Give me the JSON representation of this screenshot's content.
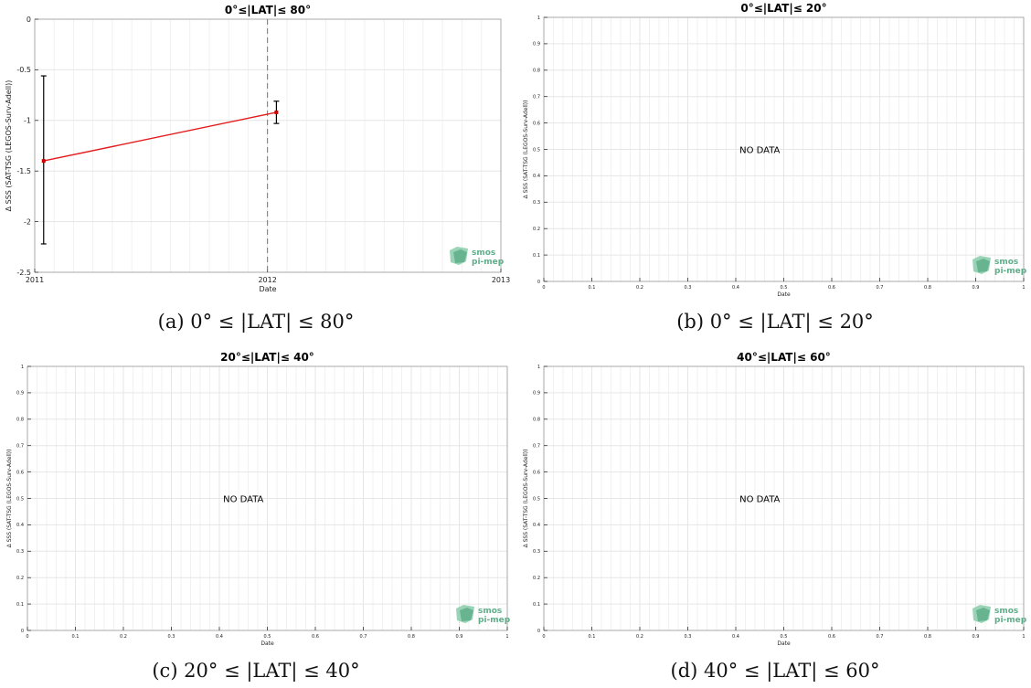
{
  "logo": {
    "line1": "smos",
    "line2": "pi-mep",
    "color": "#5fae8a",
    "icon": "smos-pi-mep-logo"
  },
  "colors": {
    "series": "#e41a1c",
    "errorbar": "#000000",
    "grid": "#e6e6e6",
    "marker": "#cc0000"
  },
  "chart_data": [
    {
      "type": "line",
      "title": "0°≤|LAT|≤ 80°",
      "xlabel": "Date",
      "ylabel": "Δ SSS (SAT-TSG (LEGOS-Surv-Adell))",
      "x_ticks": [
        "2011",
        "2012",
        "2013"
      ],
      "y_ticks": [
        "0",
        "-0.5",
        "-1",
        "-1.5",
        "-2",
        "-2.5"
      ],
      "xlim": [
        "2011-01-01",
        "2013-01-01"
      ],
      "ylim": [
        -2.5,
        0
      ],
      "grid": true,
      "vline_x": "2012-01-01",
      "series": [
        {
          "x": [
            "2011-01-15",
            "2012-01-15"
          ],
          "values": [
            -1.4,
            -0.92
          ],
          "err_low": [
            -2.22,
            -1.03
          ],
          "err_high": [
            -0.56,
            -0.81
          ]
        }
      ],
      "caption": "(a) 0° ≤ |LAT| ≤ 80°"
    },
    {
      "type": "line",
      "title": "0°≤|LAT|≤ 20°",
      "xlabel": "Date",
      "ylabel": "Δ SSS (SAT-TSG (LEGOS-Surv-Adell))",
      "x_ticks": [
        "0",
        "0.1",
        "0.2",
        "0.3",
        "0.4",
        "0.5",
        "0.6",
        "0.7",
        "0.8",
        "0.9",
        "1"
      ],
      "y_ticks": [
        "0",
        "0.1",
        "0.2",
        "0.3",
        "0.4",
        "0.5",
        "0.6",
        "0.7",
        "0.8",
        "0.9",
        "1"
      ],
      "xlim": [
        0,
        1
      ],
      "ylim": [
        0,
        1
      ],
      "grid": true,
      "message": "NO DATA",
      "series": [],
      "caption": "(b) 0° ≤ |LAT| ≤ 20°"
    },
    {
      "type": "line",
      "title": "20°≤|LAT|≤ 40°",
      "xlabel": "Date",
      "ylabel": "Δ SSS (SAT-TSG (LEGOS-Surv-Adell))",
      "x_ticks": [
        "0",
        "0.1",
        "0.2",
        "0.3",
        "0.4",
        "0.5",
        "0.6",
        "0.7",
        "0.8",
        "0.9",
        "1"
      ],
      "y_ticks": [
        "0",
        "0.1",
        "0.2",
        "0.3",
        "0.4",
        "0.5",
        "0.6",
        "0.7",
        "0.8",
        "0.9",
        "1"
      ],
      "xlim": [
        0,
        1
      ],
      "ylim": [
        0,
        1
      ],
      "grid": true,
      "message": "NO DATA",
      "series": [],
      "caption": "(c) 20° ≤ |LAT| ≤ 40°"
    },
    {
      "type": "line",
      "title": "40°≤|LAT|≤ 60°",
      "xlabel": "Date",
      "ylabel": "Δ SSS (SAT-TSG (LEGOS-Surv-Adell))",
      "x_ticks": [
        "0",
        "0.1",
        "0.2",
        "0.3",
        "0.4",
        "0.5",
        "0.6",
        "0.7",
        "0.8",
        "0.9",
        "1"
      ],
      "y_ticks": [
        "0",
        "0.1",
        "0.2",
        "0.3",
        "0.4",
        "0.5",
        "0.6",
        "0.7",
        "0.8",
        "0.9",
        "1"
      ],
      "xlim": [
        0,
        1
      ],
      "ylim": [
        0,
        1
      ],
      "grid": true,
      "message": "NO DATA",
      "series": [],
      "caption": "(d) 40° ≤ |LAT| ≤ 60°"
    }
  ]
}
